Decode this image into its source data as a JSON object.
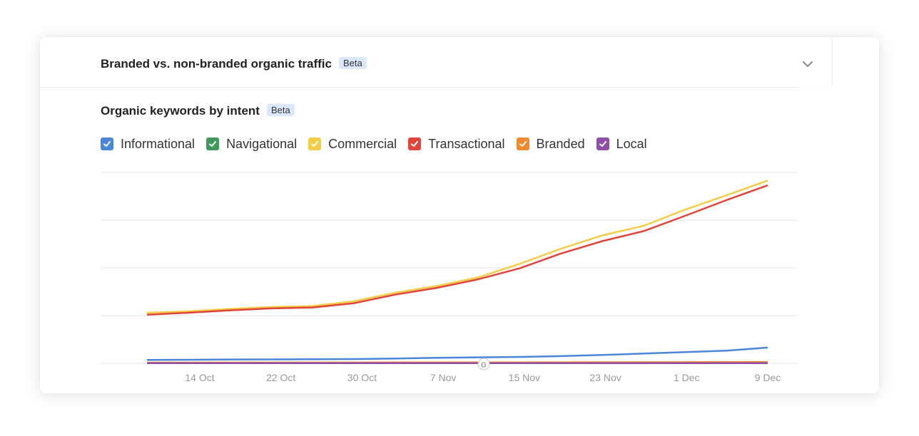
{
  "header": {
    "title": "Branded vs. non-branded organic traffic",
    "badge": "Beta"
  },
  "chart_section": {
    "title": "Organic keywords by intent",
    "badge": "Beta"
  },
  "legend": [
    {
      "label": "Informational",
      "color": "#4a86d8"
    },
    {
      "label": "Navigational",
      "color": "#3f9a5a"
    },
    {
      "label": "Commercial",
      "color": "#f2cd45"
    },
    {
      "label": "Transactional",
      "color": "#e0443a"
    },
    {
      "label": "Branded",
      "color": "#f08a2c"
    },
    {
      "label": "Local",
      "color": "#8e4fa8"
    }
  ],
  "chart_data": {
    "type": "line",
    "x_ticks": [
      "14 Oct",
      "22 Oct",
      "30 Oct",
      "7 Nov",
      "15 Nov",
      "23 Nov",
      "1 Dec",
      "9 Dec"
    ],
    "grid": true,
    "series": [
      {
        "name": "Commercial",
        "color": "#f2cd45",
        "values": [
          1060,
          1090,
          1140,
          1180,
          1200,
          1300,
          1480,
          1620,
          1800,
          2080,
          2400,
          2680,
          2880,
          3220,
          3520,
          3830
        ]
      },
      {
        "name": "Transactional",
        "color": "#e0443a",
        "values": [
          1020,
          1060,
          1110,
          1150,
          1170,
          1260,
          1440,
          1580,
          1760,
          1990,
          2300,
          2560,
          2770,
          3090,
          3420,
          3730
        ]
      },
      {
        "name": "Informational",
        "color": "#4a86d8",
        "values": [
          70,
          75,
          80,
          82,
          85,
          90,
          100,
          115,
          125,
          135,
          150,
          175,
          205,
          235,
          265,
          330
        ]
      },
      {
        "name": "Navigational",
        "color": "#3f9a5a",
        "values": [
          5,
          5,
          5,
          5,
          5,
          5,
          5,
          5,
          5,
          5,
          5,
          5,
          5,
          5,
          5,
          5
        ]
      },
      {
        "name": "Branded",
        "color": "#f08a2c",
        "values": [
          15,
          15,
          16,
          16,
          17,
          17,
          18,
          18,
          19,
          20,
          21,
          22,
          23,
          24,
          26,
          28
        ]
      },
      {
        "name": "Local",
        "color": "#8e4fa8",
        "values": [
          3,
          3,
          3,
          3,
          3,
          3,
          3,
          3,
          3,
          3,
          3,
          3,
          3,
          3,
          3,
          3
        ]
      }
    ],
    "ylim": [
      0,
      4000
    ]
  }
}
